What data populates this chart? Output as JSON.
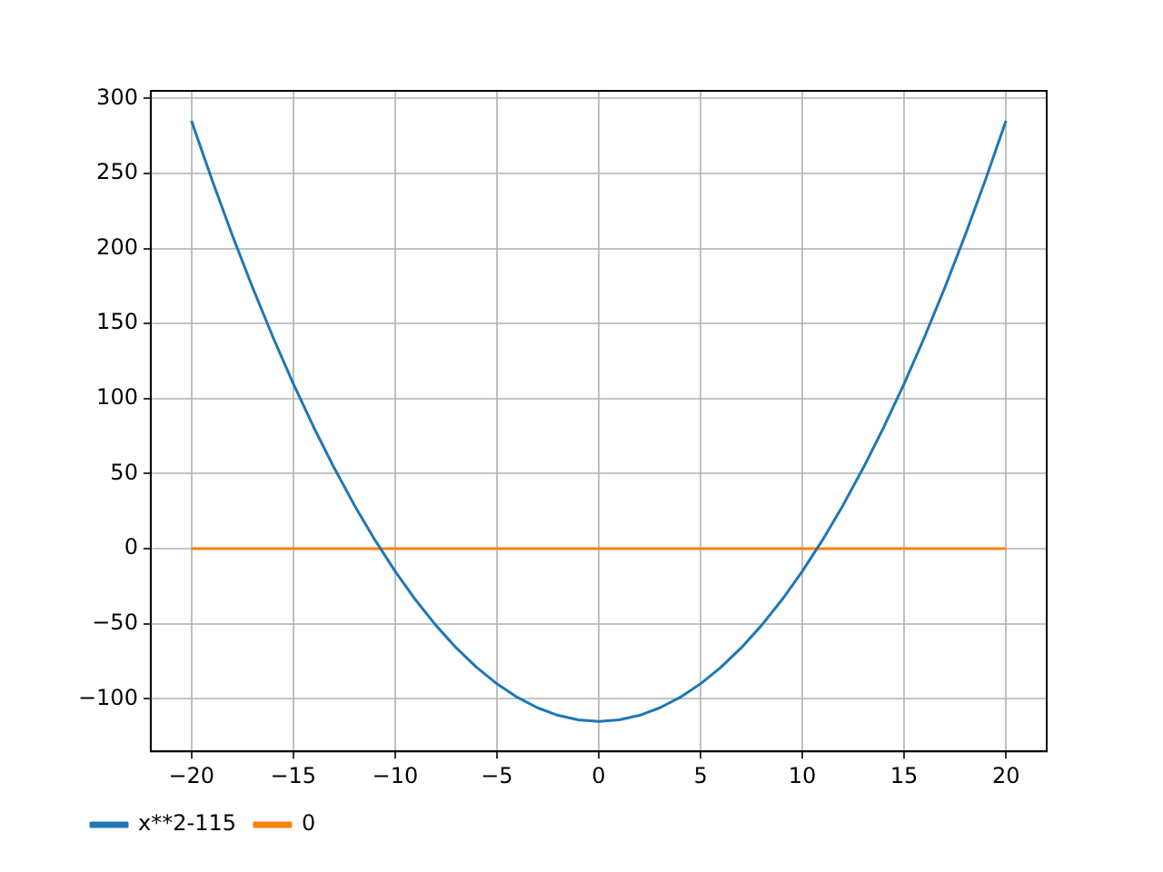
{
  "chart_data": {
    "type": "line",
    "x": [
      -20,
      -19,
      -18,
      -17,
      -16,
      -15,
      -14,
      -13,
      -12,
      -11,
      -10,
      -9,
      -8,
      -7,
      -6,
      -5,
      -4,
      -3,
      -2,
      -1,
      0,
      1,
      2,
      3,
      4,
      5,
      6,
      7,
      8,
      9,
      10,
      11,
      12,
      13,
      14,
      15,
      16,
      17,
      18,
      19,
      20
    ],
    "series": [
      {
        "name": "x**2-115",
        "color": "#1f77b4",
        "values": [
          285,
          246,
          209,
          174,
          141,
          110,
          81,
          54,
          29,
          6,
          -15,
          -34,
          -51,
          -66,
          -79,
          -90,
          -99,
          -106,
          -111,
          -114,
          -115,
          -114,
          -111,
          -106,
          -99,
          -90,
          -79,
          -66,
          -51,
          -34,
          -15,
          6,
          29,
          54,
          81,
          110,
          141,
          174,
          209,
          246,
          285
        ]
      },
      {
        "name": "0",
        "color": "#ff7f0e",
        "values": [
          0,
          0,
          0,
          0,
          0,
          0,
          0,
          0,
          0,
          0,
          0,
          0,
          0,
          0,
          0,
          0,
          0,
          0,
          0,
          0,
          0,
          0,
          0,
          0,
          0,
          0,
          0,
          0,
          0,
          0,
          0,
          0,
          0,
          0,
          0,
          0,
          0,
          0,
          0,
          0,
          0
        ]
      }
    ],
    "xlim": [
      -22,
      22
    ],
    "ylim": [
      -135,
      305
    ],
    "xticks": [
      -20,
      -15,
      -10,
      -5,
      0,
      5,
      10,
      15,
      20
    ],
    "yticks": [
      -100,
      -50,
      0,
      50,
      100,
      150,
      200,
      250,
      300
    ],
    "grid": true,
    "legend": "bottom left",
    "marker": "none",
    "line_style": "solid"
  }
}
